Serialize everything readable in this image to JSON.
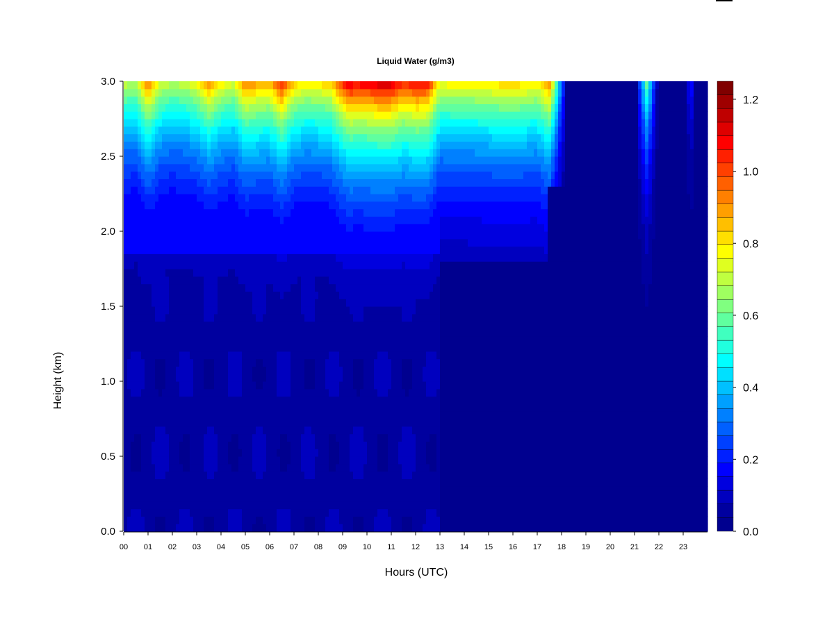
{
  "chart_data": {
    "type": "heatmap",
    "title": "Liquid Water (g/m3)",
    "xlabel": "Hours (UTC)",
    "ylabel": "Height (km)",
    "x_unit": "hours UTC",
    "y_unit": "km",
    "xlim": [
      0,
      24
    ],
    "ylim": [
      0,
      3.0
    ],
    "x_ticks": [
      "00",
      "01",
      "02",
      "03",
      "04",
      "05",
      "06",
      "07",
      "08",
      "09",
      "10",
      "11",
      "12",
      "13",
      "14",
      "15",
      "16",
      "17",
      "18",
      "19",
      "20",
      "21",
      "22",
      "23"
    ],
    "y_ticks": [
      "0.0",
      "0.5",
      "1.0",
      "1.5",
      "2.0",
      "2.5",
      "3.0"
    ],
    "colorbar": {
      "ticks": [
        "0.0",
        "0.2",
        "0.4",
        "0.6",
        "0.8",
        "1.0",
        "1.2"
      ],
      "range": [
        0,
        1.25
      ],
      "levels": 25,
      "palette": [
        "#00008f",
        "#00009f",
        "#0000bf",
        "#0000df",
        "#0000ff",
        "#0020ff",
        "#0040ff",
        "#0060ff",
        "#0080ff",
        "#00a0ff",
        "#00c0ff",
        "#00e0ff",
        "#00ffff",
        "#20ffdf",
        "#40ffbf",
        "#60ff9f",
        "#80ff80",
        "#9fff60",
        "#bfff40",
        "#dfff20",
        "#ffff00",
        "#ffdf00",
        "#ffbf00",
        "#ff9f00",
        "#ff8000",
        "#ff6000",
        "#ff4000",
        "#ff2000",
        "#ff0000",
        "#df0000",
        "#bf0000",
        "#9f0000",
        "#800000"
      ]
    },
    "series_description": "Liquid water content by hour and height",
    "column_profiles": {
      "hours": [
        0.0,
        0.5,
        1.0,
        1.5,
        2.0,
        2.5,
        3.0,
        3.5,
        4.0,
        4.5,
        5.0,
        5.5,
        6.0,
        6.5,
        7.0,
        7.5,
        8.0,
        8.5,
        9.0,
        9.3,
        9.5,
        10.0,
        10.5,
        11.0,
        11.5,
        12.0,
        12.5,
        13.0,
        13.5,
        14.0,
        15.0,
        16.0,
        17.0,
        17.5,
        18.0,
        18.3,
        19.0,
        20.0,
        21.0,
        21.5,
        22.0,
        23.0,
        23.3,
        23.8
      ],
      "top_lwc": [
        0.72,
        0.7,
        0.95,
        0.75,
        0.7,
        0.72,
        0.78,
        0.92,
        0.8,
        0.75,
        0.95,
        0.9,
        0.88,
        1.05,
        0.85,
        0.8,
        0.82,
        0.85,
        1.05,
        1.15,
        1.1,
        1.12,
        1.15,
        1.15,
        1.05,
        1.1,
        1.08,
        0.78,
        0.8,
        0.8,
        0.82,
        0.85,
        0.8,
        0.95,
        0.3,
        0.0,
        0.0,
        0.0,
        0.0,
        0.6,
        0.0,
        0.0,
        0.2,
        0.0
      ]
    }
  }
}
